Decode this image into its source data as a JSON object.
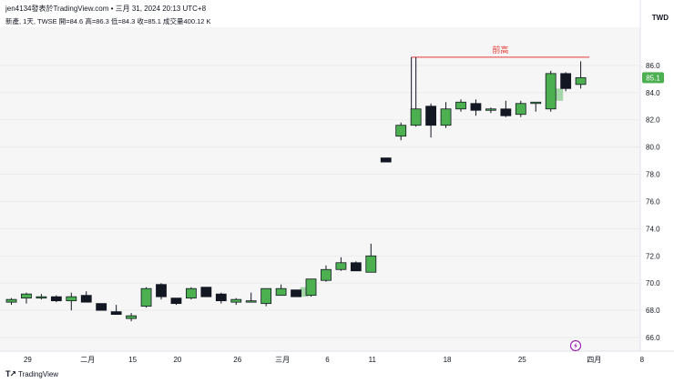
{
  "header": {
    "attribution": "jen4134發表於TradingView.com • 三月 31, 2024 20:13 UTC+8",
    "ohlc_line": "新產, 1天, TWSE  開=84.6  高=86.3  低=84.3  收=85.1  成交量400.12 K"
  },
  "currency": "TWD",
  "footer": {
    "brand": "TradingView"
  },
  "colors": {
    "up": "#4caf50",
    "down": "#131722",
    "wick": "#131722",
    "vol_up": "#a5d6a7",
    "resistance": "#e53935",
    "plot_bg": "#f6f6f6",
    "last_price_bg": "#4caf50",
    "event_icon": "#9c27b0"
  },
  "chart_data": {
    "type": "candlestick",
    "title": "",
    "y_ticks": [
      "66.0",
      "68.0",
      "70.0",
      "72.0",
      "74.0",
      "76.0",
      "78.0",
      "80.0",
      "82.0",
      "84.0",
      "86.0"
    ],
    "ylim": [
      65.0,
      88.8
    ],
    "x_ticks": [
      "29",
      "二月",
      "15",
      "20",
      "26",
      "三月",
      "6",
      "11",
      "18",
      "25",
      "四月",
      "8"
    ],
    "last_price_label": "85.1",
    "annotation": {
      "label": "前高",
      "price": 86.6
    },
    "event_marker": "lightning-icon",
    "candles": [
      {
        "open": 68.6,
        "high": 68.9,
        "low": 68.4,
        "close": 68.8
      },
      {
        "open": 68.9,
        "high": 69.3,
        "low": 68.5,
        "close": 69.2
      },
      {
        "open": 69.0,
        "high": 69.2,
        "low": 68.8,
        "close": 69.0
      },
      {
        "open": 69.0,
        "high": 69.1,
        "low": 68.6,
        "close": 68.7
      },
      {
        "open": 68.7,
        "high": 69.3,
        "low": 68.0,
        "close": 69.0
      },
      {
        "open": 69.1,
        "high": 69.4,
        "low": 68.6,
        "close": 68.6
      },
      {
        "open": 68.5,
        "high": 68.5,
        "low": 68.0,
        "close": 68.0
      },
      {
        "open": 67.9,
        "high": 68.4,
        "low": 67.7,
        "close": 67.7
      },
      {
        "open": 67.4,
        "high": 67.8,
        "low": 67.2,
        "close": 67.6
      },
      {
        "open": 68.3,
        "high": 69.7,
        "low": 68.2,
        "close": 69.6
      },
      {
        "open": 69.9,
        "high": 70.0,
        "low": 68.8,
        "close": 69.0
      },
      {
        "open": 68.9,
        "high": 68.9,
        "low": 68.4,
        "close": 68.5
      },
      {
        "open": 68.9,
        "high": 69.7,
        "low": 68.8,
        "close": 69.6
      },
      {
        "open": 69.7,
        "high": 69.7,
        "low": 69.0,
        "close": 69.0
      },
      {
        "open": 69.2,
        "high": 69.3,
        "low": 68.5,
        "close": 68.7
      },
      {
        "open": 68.6,
        "high": 68.9,
        "low": 68.4,
        "close": 68.8
      },
      {
        "open": 68.7,
        "high": 69.3,
        "low": 68.6,
        "close": 68.7
      },
      {
        "open": 68.5,
        "high": 69.6,
        "low": 68.3,
        "close": 69.6
      },
      {
        "open": 69.1,
        "high": 69.9,
        "low": 69.1,
        "close": 69.6
      },
      {
        "open": 69.5,
        "high": 69.5,
        "low": 69.0,
        "close": 69.0
      },
      {
        "open": 69.1,
        "high": 70.3,
        "low": 69.0,
        "close": 70.3
      },
      {
        "open": 70.2,
        "high": 71.3,
        "low": 70.1,
        "close": 71.0
      },
      {
        "open": 71.0,
        "high": 71.9,
        "low": 70.9,
        "close": 71.5
      },
      {
        "open": 71.5,
        "high": 71.6,
        "low": 70.9,
        "close": 70.9
      },
      {
        "open": 70.8,
        "high": 72.9,
        "low": 70.8,
        "close": 72.0
      },
      {
        "open": 79.2,
        "high": 79.2,
        "low": 78.9,
        "close": 78.9
      },
      {
        "open": 80.8,
        "high": 81.8,
        "low": 80.5,
        "close": 81.6
      },
      {
        "open": 81.6,
        "high": 86.6,
        "low": 81.5,
        "close": 82.8
      },
      {
        "open": 83.0,
        "high": 83.2,
        "low": 80.7,
        "close": 81.6
      },
      {
        "open": 81.6,
        "high": 83.3,
        "low": 81.4,
        "close": 82.8
      },
      {
        "open": 82.8,
        "high": 83.5,
        "low": 82.6,
        "close": 83.3
      },
      {
        "open": 83.2,
        "high": 83.5,
        "low": 82.3,
        "close": 82.7
      },
      {
        "open": 82.8,
        "high": 82.9,
        "low": 82.5,
        "close": 82.8
      },
      {
        "open": 82.8,
        "high": 83.4,
        "low": 82.2,
        "close": 82.3
      },
      {
        "open": 82.4,
        "high": 83.4,
        "low": 82.2,
        "close": 83.2
      },
      {
        "open": 83.3,
        "high": 83.3,
        "low": 82.6,
        "close": 83.3
      },
      {
        "open": 82.8,
        "high": 85.6,
        "low": 82.6,
        "close": 85.4
      },
      {
        "open": 85.4,
        "high": 85.5,
        "low": 84.1,
        "close": 84.3
      },
      {
        "open": 84.6,
        "high": 86.3,
        "low": 84.3,
        "close": 85.1
      }
    ],
    "volume_highlights": [
      {
        "index": 19,
        "low": 69.0,
        "high": 69.7
      },
      {
        "index": 36,
        "low": 83.4,
        "high": 84.3
      }
    ]
  }
}
